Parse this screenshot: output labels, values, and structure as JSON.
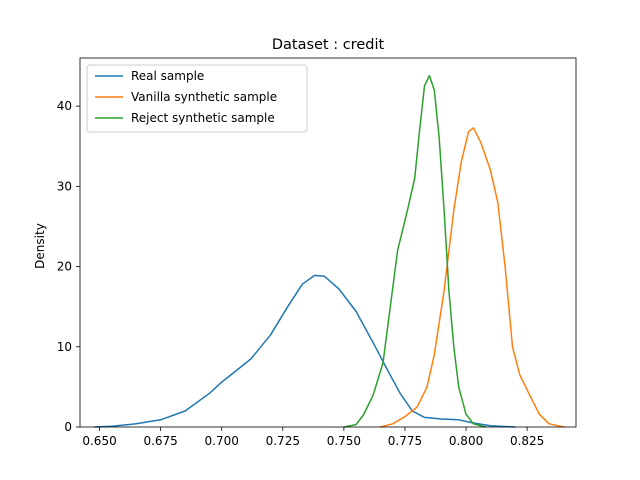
{
  "chart_data": {
    "type": "line",
    "title": "Dataset : credit",
    "xlabel": "",
    "ylabel": "Density",
    "xlim": [
      0.642,
      0.845
    ],
    "ylim": [
      0,
      46
    ],
    "x_ticks": [
      0.65,
      0.675,
      0.7,
      0.725,
      0.75,
      0.775,
      0.8,
      0.825
    ],
    "x_tick_labels": [
      "0.650",
      "0.675",
      "0.700",
      "0.725",
      "0.750",
      "0.775",
      "0.800",
      "0.825"
    ],
    "y_ticks": [
      0,
      10,
      20,
      30,
      40
    ],
    "y_tick_labels": [
      "0",
      "10",
      "20",
      "30",
      "40"
    ],
    "grid": false,
    "legend_position": "upper-left",
    "series": [
      {
        "name": "Real sample",
        "color": "#1f77b4",
        "points": [
          [
            0.648,
            0.0
          ],
          [
            0.655,
            0.1
          ],
          [
            0.665,
            0.4
          ],
          [
            0.675,
            0.9
          ],
          [
            0.685,
            2.0
          ],
          [
            0.695,
            4.2
          ],
          [
            0.7,
            5.6
          ],
          [
            0.705,
            6.8
          ],
          [
            0.712,
            8.5
          ],
          [
            0.72,
            11.5
          ],
          [
            0.727,
            15.0
          ],
          [
            0.733,
            17.8
          ],
          [
            0.738,
            18.9
          ],
          [
            0.742,
            18.8
          ],
          [
            0.748,
            17.2
          ],
          [
            0.755,
            14.4
          ],
          [
            0.762,
            10.5
          ],
          [
            0.768,
            7.0
          ],
          [
            0.773,
            4.2
          ],
          [
            0.778,
            2.0
          ],
          [
            0.783,
            1.2
          ],
          [
            0.79,
            1.0
          ],
          [
            0.797,
            0.9
          ],
          [
            0.803,
            0.5
          ],
          [
            0.81,
            0.15
          ],
          [
            0.82,
            0.0
          ]
        ]
      },
      {
        "name": "Vanilla synthetic sample",
        "color": "#ff7f0e",
        "points": [
          [
            0.765,
            0.0
          ],
          [
            0.77,
            0.4
          ],
          [
            0.775,
            1.3
          ],
          [
            0.78,
            2.5
          ],
          [
            0.784,
            5.0
          ],
          [
            0.787,
            9.0
          ],
          [
            0.791,
            17.0
          ],
          [
            0.795,
            27.0
          ],
          [
            0.798,
            33.0
          ],
          [
            0.801,
            36.8
          ],
          [
            0.803,
            37.3
          ],
          [
            0.806,
            35.5
          ],
          [
            0.81,
            32.0
          ],
          [
            0.813,
            28.0
          ],
          [
            0.816,
            20.0
          ],
          [
            0.819,
            10.0
          ],
          [
            0.822,
            6.5
          ],
          [
            0.826,
            4.0
          ],
          [
            0.83,
            1.6
          ],
          [
            0.834,
            0.4
          ],
          [
            0.84,
            0.0
          ]
        ]
      },
      {
        "name": "Reject synthetic sample",
        "color": "#2ca02c",
        "points": [
          [
            0.75,
            0.0
          ],
          [
            0.755,
            0.3
          ],
          [
            0.758,
            1.5
          ],
          [
            0.762,
            4.0
          ],
          [
            0.766,
            8.0
          ],
          [
            0.769,
            15.0
          ],
          [
            0.772,
            22.0
          ],
          [
            0.776,
            27.0
          ],
          [
            0.779,
            31.0
          ],
          [
            0.781,
            37.0
          ],
          [
            0.783,
            42.5
          ],
          [
            0.785,
            43.8
          ],
          [
            0.787,
            42.0
          ],
          [
            0.789,
            36.0
          ],
          [
            0.791,
            27.0
          ],
          [
            0.793,
            17.0
          ],
          [
            0.795,
            10.0
          ],
          [
            0.797,
            5.0
          ],
          [
            0.8,
            1.6
          ],
          [
            0.803,
            0.4
          ],
          [
            0.808,
            0.0
          ]
        ]
      }
    ]
  }
}
